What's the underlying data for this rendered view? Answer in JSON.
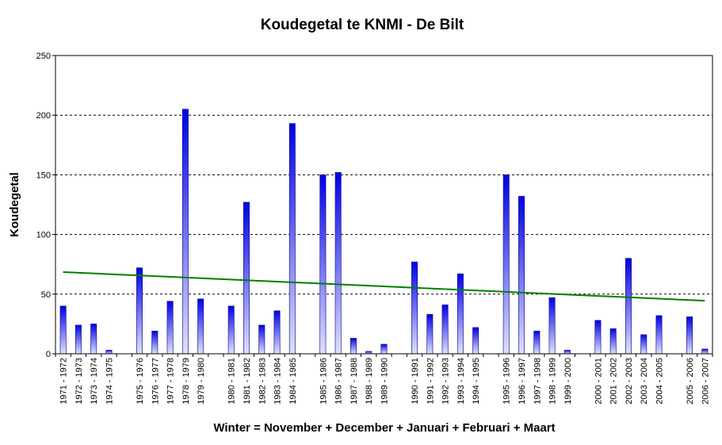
{
  "chart_data": {
    "type": "bar",
    "title": "Koudegetal te KNMI - De Bilt",
    "xlabel": "Winter = November + December + Januari + Februari + Maart",
    "ylabel": "Koudegetal",
    "ylim": [
      0,
      250
    ],
    "yticks": [
      "0",
      "50",
      "100",
      "150",
      "200",
      "250"
    ],
    "grid": true,
    "categories": [
      "1971 - 1972",
      "1972 - 1973",
      "1973 - 1974",
      "1974 - 1975",
      "",
      "1975 - 1976",
      "1976 - 1977",
      "1977 - 1978",
      "1978 - 1979",
      "1979 - 1980",
      "",
      "1980 - 1981",
      "1981 - 1982",
      "1982 - 1983",
      "1983 - 1984",
      "1984 - 1985",
      "",
      "1985 - 1986",
      "1986 - 1987",
      "1987 - 1988",
      "1988 - 1989",
      "1989 - 1990",
      "",
      "1990 - 1991",
      "1991 - 1992",
      "1992 - 1993",
      "1993 - 1994",
      "1994 - 1995",
      "",
      "1995 - 1996",
      "1996 - 1997",
      "1997 - 1998",
      "1998 - 1999",
      "1999 - 2000",
      "",
      "2000 - 2001",
      "2001 - 2002",
      "2002 - 2003",
      "2003 - 2004",
      "2004 - 2005",
      "",
      "2005 - 2006",
      "2006 - 2007"
    ],
    "values": [
      40,
      24,
      25,
      3,
      null,
      72,
      19,
      44,
      205,
      46,
      null,
      40,
      127,
      24,
      36,
      193,
      null,
      150,
      152,
      13,
      2,
      8,
      null,
      77,
      33,
      41,
      67,
      22,
      null,
      150,
      132,
      19,
      47,
      3,
      null,
      28,
      21,
      80,
      16,
      32,
      null,
      31,
      4
    ],
    "trendline": {
      "color": "#008000",
      "start": 68.5,
      "end": 44.5
    },
    "colors": {
      "bar_top": "#0000e6",
      "bar_bottom": "#e0e0ff",
      "bar_stroke": "#00007a"
    }
  }
}
